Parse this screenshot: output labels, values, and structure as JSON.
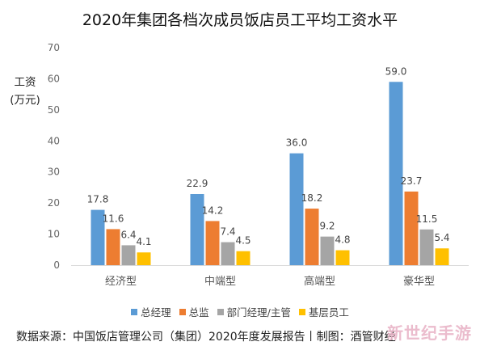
{
  "title": "2020年集团各档次成员饭店员工平均工资水平",
  "y_unit_line1": "工资",
  "y_unit_line2": "(万元)",
  "source": "数据来源：中国饭店管理公司（集团）2020年度发展报告丨制图：酒管财经",
  "watermark": "新世纪手游",
  "colors": {
    "总经理": "#5b9bd5",
    "总监": "#ed7d31",
    "部门经理/主管": "#a5a5a5",
    "基层员工": "#ffc000"
  },
  "chart_data": {
    "type": "bar",
    "title": "2020年集团各档次成员饭店员工平均工资水平",
    "xlabel": "",
    "ylabel": "工资\n(万元)",
    "categories": [
      "经济型",
      "中端型",
      "高端型",
      "豪华型"
    ],
    "series": [
      {
        "name": "总经理",
        "values": [
          17.8,
          22.9,
          36.0,
          59.0
        ]
      },
      {
        "name": "总监",
        "values": [
          11.6,
          14.2,
          18.2,
          23.7
        ]
      },
      {
        "name": "部门经理/主管",
        "values": [
          6.4,
          7.4,
          9.2,
          11.5
        ]
      },
      {
        "name": "基层员工",
        "values": [
          4.1,
          4.5,
          4.8,
          5.4
        ]
      }
    ],
    "data_labels": [
      [
        "17.8",
        "22.9",
        "36.0",
        "59.0"
      ],
      [
        "11.6",
        "14.2",
        "18.2",
        "23.7"
      ],
      [
        "6.4",
        "7.4",
        "9.2",
        "11.5"
      ],
      [
        "4.1",
        "4.5",
        "4.8",
        "5.4"
      ]
    ],
    "ylim": [
      0,
      70
    ],
    "yticks": [
      "0",
      "10",
      "20",
      "30",
      "40",
      "50",
      "60",
      "70"
    ],
    "grid": false,
    "legend": "bottom"
  }
}
